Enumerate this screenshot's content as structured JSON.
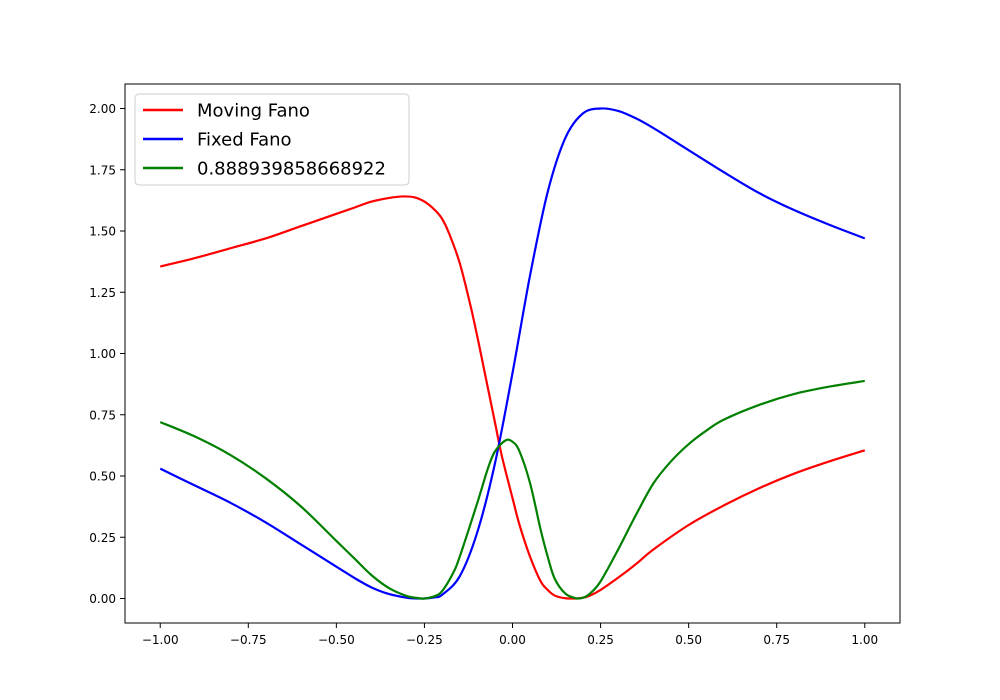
{
  "chart_data": {
    "type": "line",
    "xlim": [
      -1.1,
      1.1
    ],
    "ylim": [
      -0.1,
      2.1
    ],
    "xticks": [
      -1.0,
      -0.75,
      -0.5,
      -0.25,
      0.0,
      0.25,
      0.5,
      0.75,
      1.0
    ],
    "yticks": [
      0.0,
      0.25,
      0.5,
      0.75,
      1.0,
      1.25,
      1.5,
      1.75,
      2.0
    ],
    "xtick_labels": [
      "−1.00",
      "−0.75",
      "−0.50",
      "−0.25",
      "0.00",
      "0.25",
      "0.50",
      "0.75",
      "1.00"
    ],
    "ytick_labels": [
      "0.00",
      "0.25",
      "0.50",
      "0.75",
      "1.00",
      "1.25",
      "1.50",
      "1.75",
      "2.00"
    ],
    "grid": false,
    "legend_position": "upper-left",
    "series": [
      {
        "name": "Moving Fano",
        "color": "#ff0000",
        "x": [
          -1.0,
          -0.9,
          -0.8,
          -0.7,
          -0.6,
          -0.5,
          -0.45,
          -0.4,
          -0.35,
          -0.31,
          -0.28,
          -0.25,
          -0.22,
          -0.2,
          -0.18,
          -0.15,
          -0.12,
          -0.1,
          -0.08,
          -0.05,
          -0.03,
          0.0,
          0.02,
          0.05,
          0.08,
          0.1,
          0.12,
          0.15,
          0.18,
          0.2,
          0.22,
          0.25,
          0.3,
          0.35,
          0.4,
          0.5,
          0.6,
          0.7,
          0.8,
          0.9,
          1.0
        ],
        "y": [
          1.355,
          1.39,
          1.43,
          1.47,
          1.52,
          1.57,
          1.595,
          1.62,
          1.635,
          1.641,
          1.638,
          1.62,
          1.585,
          1.55,
          1.49,
          1.37,
          1.2,
          1.07,
          0.93,
          0.72,
          0.58,
          0.41,
          0.3,
          0.17,
          0.07,
          0.035,
          0.012,
          0.001,
          0.0,
          0.003,
          0.012,
          0.035,
          0.085,
          0.14,
          0.2,
          0.3,
          0.38,
          0.45,
          0.51,
          0.56,
          0.605
        ]
      },
      {
        "name": "Fixed Fano",
        "color": "#0000ff",
        "x": [
          -1.0,
          -0.9,
          -0.8,
          -0.7,
          -0.6,
          -0.5,
          -0.45,
          -0.4,
          -0.35,
          -0.3,
          -0.28,
          -0.25,
          -0.22,
          -0.2,
          -0.15,
          -0.1,
          -0.05,
          0.0,
          0.05,
          0.1,
          0.15,
          0.2,
          0.25,
          0.3,
          0.35,
          0.4,
          0.5,
          0.6,
          0.7,
          0.8,
          0.9,
          1.0
        ],
        "y": [
          0.53,
          0.46,
          0.39,
          0.31,
          0.22,
          0.13,
          0.085,
          0.045,
          0.018,
          0.003,
          0.0005,
          0.0,
          0.005,
          0.015,
          0.09,
          0.27,
          0.55,
          0.92,
          1.32,
          1.66,
          1.88,
          1.98,
          2.0,
          1.99,
          1.96,
          1.92,
          1.83,
          1.74,
          1.655,
          1.585,
          1.525,
          1.47
        ]
      },
      {
        "name": "0.888939858668922",
        "color": "#008000",
        "x": [
          -1.0,
          -0.9,
          -0.8,
          -0.7,
          -0.6,
          -0.5,
          -0.45,
          -0.4,
          -0.35,
          -0.3,
          -0.27,
          -0.25,
          -0.22,
          -0.2,
          -0.17,
          -0.15,
          -0.1,
          -0.07,
          -0.05,
          -0.02,
          0.0,
          0.02,
          0.05,
          0.08,
          0.1,
          0.12,
          0.15,
          0.18,
          0.2,
          0.22,
          0.25,
          0.3,
          0.35,
          0.4,
          0.45,
          0.5,
          0.55,
          0.6,
          0.7,
          0.8,
          0.9,
          1.0
        ],
        "y": [
          0.72,
          0.66,
          0.585,
          0.49,
          0.375,
          0.235,
          0.165,
          0.095,
          0.042,
          0.01,
          0.002,
          0.0,
          0.01,
          0.03,
          0.1,
          0.17,
          0.39,
          0.53,
          0.6,
          0.645,
          0.64,
          0.6,
          0.47,
          0.28,
          0.17,
          0.08,
          0.02,
          0.001,
          0.003,
          0.02,
          0.07,
          0.2,
          0.34,
          0.47,
          0.56,
          0.63,
          0.685,
          0.73,
          0.79,
          0.835,
          0.865,
          0.888
        ]
      }
    ]
  }
}
